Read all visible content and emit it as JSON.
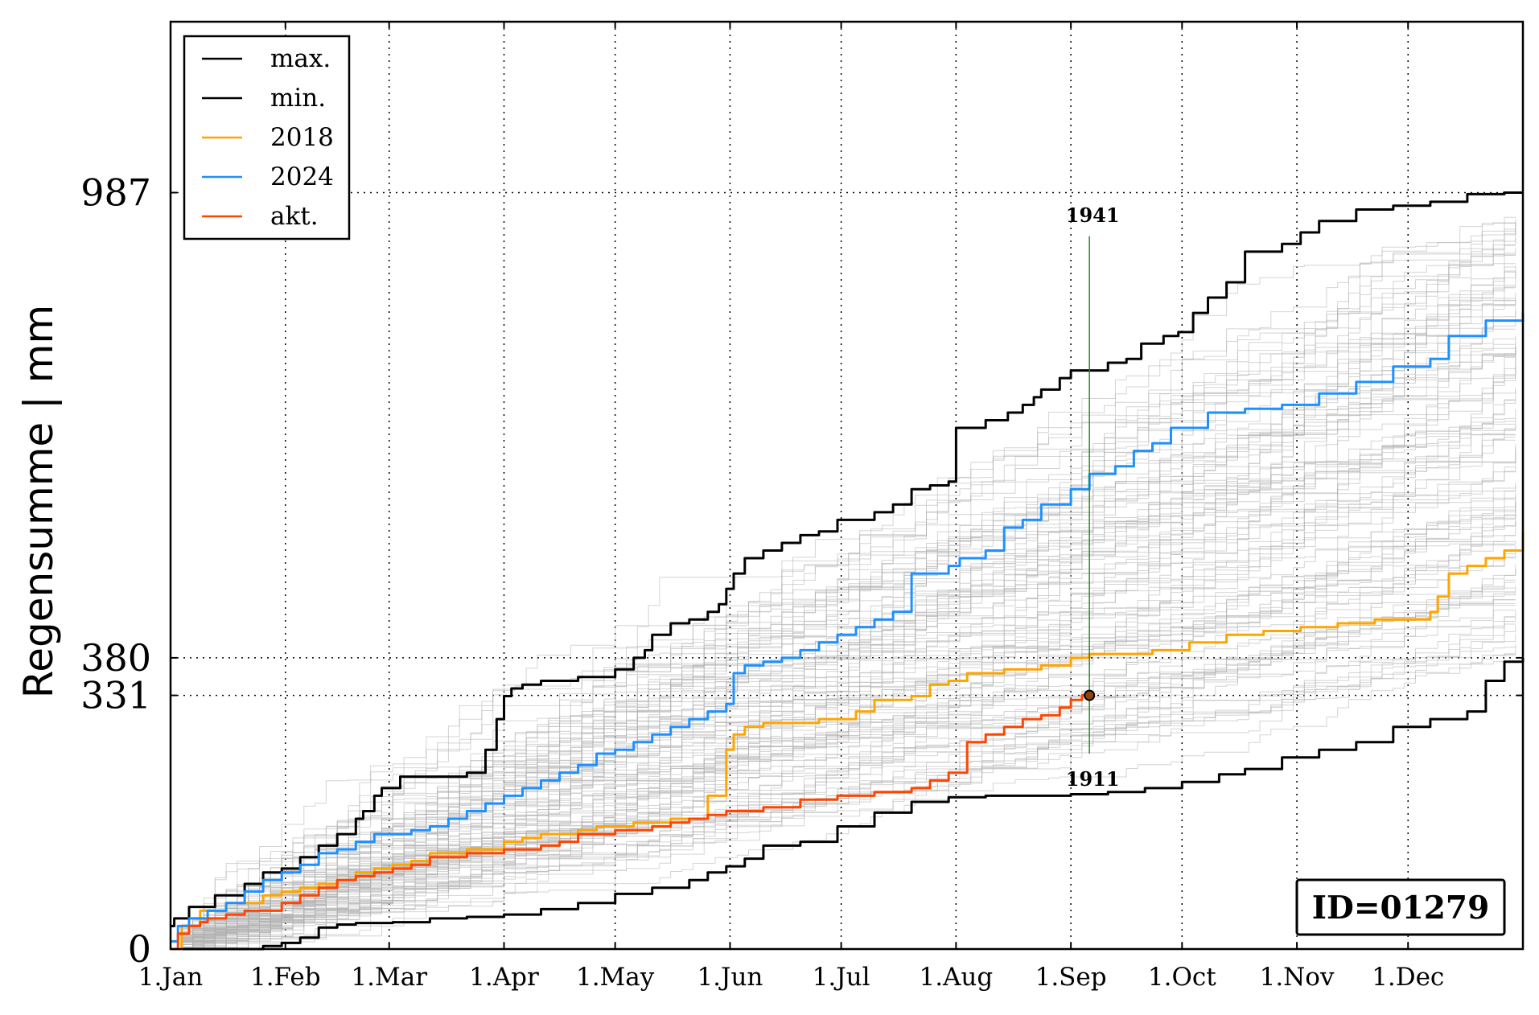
{
  "chart_data": {
    "type": "line",
    "title": "",
    "xlabel": "",
    "ylabel": "Regensumme | mm",
    "xlim": [
      0,
      365
    ],
    "ylim": [
      0,
      1210
    ],
    "grid": true,
    "legend_position": "top-left",
    "x_ticks": [
      {
        "day": 0,
        "label": "1.Jan"
      },
      {
        "day": 31,
        "label": "1.Feb"
      },
      {
        "day": 59,
        "label": "1.Mar"
      },
      {
        "day": 90,
        "label": "1.Apr"
      },
      {
        "day": 120,
        "label": "1.May"
      },
      {
        "day": 151,
        "label": "1.Jun"
      },
      {
        "day": 181,
        "label": "1.Jul"
      },
      {
        "day": 212,
        "label": "1.Aug"
      },
      {
        "day": 243,
        "label": "1.Sep"
      },
      {
        "day": 273,
        "label": "1.Oct"
      },
      {
        "day": 304,
        "label": "1.Nov"
      },
      {
        "day": 334,
        "label": "1.Dec"
      }
    ],
    "y_ticks": [
      {
        "value": 0,
        "label": "0"
      },
      {
        "value": 331,
        "label": "331"
      },
      {
        "value": 380,
        "label": "380"
      },
      {
        "value": 987,
        "label": "987"
      }
    ],
    "series": [
      {
        "name": "max.",
        "color": "#000000",
        "x": [
          0,
          1,
          5,
          12,
          20,
          25,
          30,
          35,
          40,
          45,
          50,
          52,
          55,
          57,
          62,
          70,
          80,
          85,
          88,
          90,
          92,
          95,
          100,
          110,
          120,
          125,
          128,
          130,
          135,
          140,
          145,
          148,
          150,
          152,
          155,
          160,
          165,
          170,
          172,
          175,
          180,
          185,
          190,
          195,
          200,
          205,
          210,
          212,
          220,
          226,
          230,
          233,
          235,
          240,
          243,
          253,
          258,
          262,
          268,
          272,
          276,
          280,
          285,
          290,
          300,
          305,
          310,
          320,
          330,
          340,
          350,
          360,
          365
        ],
        "y": [
          30,
          40,
          55,
          70,
          85,
          100,
          105,
          120,
          135,
          150,
          170,
          180,
          200,
          210,
          225,
          225,
          230,
          260,
          300,
          330,
          340,
          345,
          350,
          355,
          365,
          380,
          390,
          410,
          425,
          430,
          440,
          450,
          470,
          490,
          510,
          520,
          530,
          540,
          540,
          545,
          560,
          560,
          570,
          580,
          600,
          605,
          610,
          680,
          690,
          700,
          710,
          720,
          730,
          745,
          755,
          765,
          770,
          790,
          800,
          805,
          830,
          850,
          870,
          910,
          920,
          935,
          950,
          965,
          970,
          975,
          985,
          987,
          987
        ]
      },
      {
        "name": "min.",
        "color": "#000000",
        "x": [
          0,
          5,
          10,
          15,
          20,
          25,
          30,
          35,
          40,
          45,
          50,
          55,
          60,
          70,
          80,
          90,
          100,
          110,
          120,
          130,
          140,
          145,
          150,
          155,
          160,
          170,
          180,
          190,
          200,
          210,
          220,
          230,
          243,
          253,
          263,
          273,
          283,
          290,
          300,
          310,
          320,
          330,
          340,
          350,
          355,
          360,
          365
        ],
        "y": [
          0,
          0,
          0,
          0,
          0,
          4,
          8,
          15,
          28,
          32,
          34,
          34,
          35,
          40,
          42,
          45,
          52,
          60,
          72,
          80,
          90,
          100,
          108,
          118,
          135,
          140,
          160,
          178,
          192,
          198,
          200,
          200,
          202,
          205,
          210,
          218,
          228,
          235,
          250,
          260,
          270,
          290,
          300,
          310,
          350,
          375,
          380
        ]
      },
      {
        "name": "2018",
        "color": "#ffa500",
        "x": [
          0,
          3,
          8,
          15,
          20,
          25,
          30,
          35,
          40,
          45,
          50,
          55,
          60,
          65,
          70,
          80,
          85,
          90,
          95,
          100,
          110,
          115,
          120,
          125,
          130,
          135,
          140,
          145,
          148,
          150,
          152,
          155,
          160,
          170,
          175,
          180,
          185,
          190,
          195,
          200,
          205,
          210,
          215,
          225,
          235,
          243,
          248,
          255,
          265,
          275,
          285,
          295,
          305,
          315,
          325,
          335,
          340,
          342,
          345,
          350,
          355,
          360,
          365
        ],
        "y": [
          0,
          30,
          50,
          60,
          60,
          70,
          75,
          80,
          85,
          90,
          100,
          105,
          110,
          115,
          125,
          130,
          130,
          140,
          145,
          150,
          155,
          160,
          160,
          165,
          165,
          170,
          170,
          200,
          200,
          260,
          280,
          290,
          295,
          295,
          300,
          300,
          310,
          325,
          325,
          330,
          345,
          350,
          360,
          365,
          370,
          380,
          385,
          385,
          390,
          400,
          410,
          415,
          420,
          425,
          430,
          430,
          440,
          460,
          490,
          500,
          510,
          520,
          545
        ]
      },
      {
        "name": "2024",
        "color": "#1e90ff",
        "x": [
          0,
          2,
          5,
          10,
          15,
          20,
          25,
          30,
          35,
          40,
          45,
          50,
          55,
          60,
          65,
          70,
          75,
          80,
          85,
          90,
          95,
          100,
          105,
          110,
          115,
          120,
          125,
          130,
          135,
          140,
          145,
          150,
          152,
          155,
          160,
          165,
          170,
          175,
          180,
          185,
          190,
          195,
          200,
          210,
          213,
          220,
          225,
          230,
          235,
          243,
          248,
          255,
          260,
          265,
          270,
          280,
          290,
          300,
          310,
          320,
          330,
          340,
          345,
          355,
          365
        ],
        "y": [
          10,
          30,
          40,
          50,
          60,
          75,
          90,
          100,
          110,
          125,
          130,
          140,
          150,
          150,
          155,
          160,
          170,
          180,
          190,
          200,
          210,
          220,
          230,
          240,
          255,
          260,
          270,
          280,
          290,
          300,
          310,
          320,
          360,
          370,
          375,
          380,
          390,
          400,
          410,
          420,
          430,
          440,
          490,
          500,
          510,
          520,
          550,
          560,
          580,
          600,
          620,
          630,
          650,
          660,
          680,
          700,
          705,
          710,
          725,
          740,
          760,
          770,
          800,
          820,
          830
        ]
      },
      {
        "name": "akt.",
        "color": "#ff4500",
        "x": [
          0,
          2,
          5,
          8,
          10,
          15,
          20,
          25,
          30,
          35,
          40,
          45,
          50,
          55,
          60,
          65,
          70,
          80,
          90,
          100,
          105,
          110,
          120,
          130,
          135,
          140,
          145,
          150,
          160,
          170,
          180,
          190,
          200,
          205,
          210,
          215,
          220,
          225,
          230,
          235,
          240,
          243,
          246,
          248
        ],
        "y": [
          0,
          20,
          30,
          35,
          40,
          45,
          50,
          50,
          60,
          70,
          80,
          90,
          95,
          100,
          105,
          110,
          120,
          125,
          130,
          135,
          140,
          150,
          155,
          160,
          165,
          170,
          175,
          180,
          185,
          195,
          200,
          205,
          210,
          220,
          230,
          270,
          280,
          290,
          300,
          305,
          315,
          325,
          331,
          331
        ]
      }
    ],
    "background_series_count": 110,
    "background_series_color": "#b0b0b0",
    "vertical_marker": {
      "x": 248,
      "y_max": 930,
      "y_min": 255,
      "label_top": "1941",
      "label_bottom": "1911"
    },
    "current_point": {
      "x": 248,
      "y": 331
    },
    "reference_lines": [
      987,
      380,
      331
    ],
    "id_label": "ID=01279"
  }
}
